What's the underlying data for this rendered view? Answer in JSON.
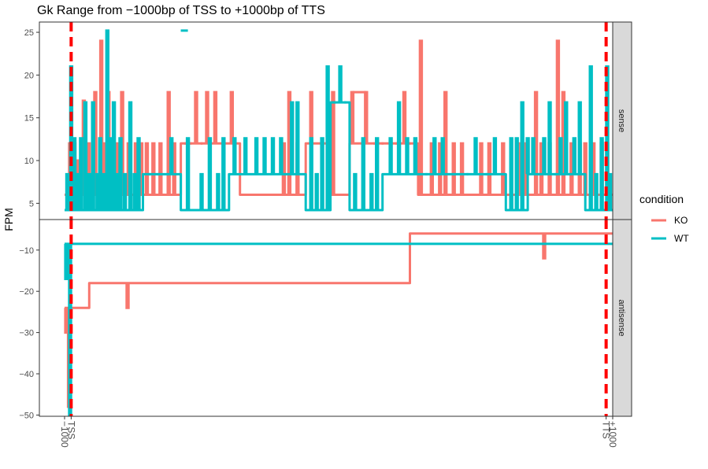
{
  "chart_data": {
    "type": "line",
    "title": "Gk Range from −1000bp of TSS to +1000bp of TTS",
    "ylabel": "FPM",
    "xlabel": "",
    "x_ticks": [
      "−1000",
      "TSS",
      "TTS",
      "+1000"
    ],
    "grid": false,
    "legend": {
      "title": "condition",
      "placement": "right",
      "entries": [
        {
          "label": "KO",
          "color": "#F8766D"
        },
        {
          "label": "WT",
          "color": "#00BFC4"
        }
      ]
    },
    "marker_lines": {
      "color": "#FF0000",
      "style": "dashed",
      "at": [
        "TSS",
        "TTS"
      ]
    },
    "x_domain": [
      0,
      100
    ],
    "x_positions": {
      "−1000": 0,
      "TSS": 1.2,
      "TTS": 98.8,
      "+1000": 100
    },
    "panels": [
      {
        "strip": "sense",
        "y_ticks": [
          5,
          10,
          15,
          20,
          25
        ],
        "ylim": [
          3.1,
          26.2
        ],
        "series": [
          {
            "name": "KO",
            "color": "#F8766D",
            "baseline": [
              [
                0,
                6
              ],
              [
                21.2,
                6
              ],
              [
                21.2,
                12
              ],
              [
                32,
                12
              ],
              [
                32,
                6
              ],
              [
                44,
                6
              ],
              [
                44,
                12
              ],
              [
                48,
                12
              ],
              [
                48,
                6
              ],
              [
                52,
                6
              ],
              [
                52,
                12
              ],
              [
                64.5,
                12
              ],
              [
                64.5,
                6
              ],
              [
                100,
                6
              ]
            ],
            "spikes": [
              [
                1,
                12
              ],
              [
                1.8,
                12
              ],
              [
                2.5,
                10
              ],
              [
                3.5,
                17
              ],
              [
                4.4,
                12
              ],
              [
                5.6,
                18
              ],
              [
                6.7,
                24
              ],
              [
                7.3,
                12
              ],
              [
                8,
                18
              ],
              [
                9.5,
                12
              ],
              [
                10.5,
                18
              ],
              [
                11.7,
                12
              ],
              [
                13,
                12
              ],
              [
                14,
                12
              ],
              [
                15,
                12
              ],
              [
                16.2,
                12
              ],
              [
                17.5,
                12
              ],
              [
                19,
                18
              ],
              [
                20,
                12
              ],
              [
                22,
                12
              ],
              [
                23,
                12
              ],
              [
                24,
                18
              ],
              [
                25,
                12
              ],
              [
                26,
                18
              ],
              [
                27.5,
                18
              ],
              [
                29,
                12
              ],
              [
                30.5,
                18
              ],
              [
                40,
                12
              ],
              [
                41,
                18
              ],
              [
                42.5,
                12
              ],
              [
                45,
                18
              ],
              [
                49,
                18
              ],
              [
                52.5,
                18
              ],
              [
                55,
                18
              ],
              [
                56.5,
                12
              ],
              [
                58,
                12
              ],
              [
                60.5,
                12
              ],
              [
                62,
                18
              ],
              [
                63,
                12
              ],
              [
                65,
                24
              ],
              [
                67,
                12
              ],
              [
                68.5,
                12
              ],
              [
                69.5,
                18
              ],
              [
                71,
                12
              ],
              [
                72.5,
                12
              ],
              [
                76,
                12
              ],
              [
                77.5,
                12
              ],
              [
                80,
                12
              ],
              [
                83,
                12
              ],
              [
                84,
                12
              ],
              [
                86,
                18
              ],
              [
                87,
                12
              ],
              [
                88.5,
                12
              ],
              [
                90,
                24
              ],
              [
                91,
                18
              ],
              [
                92.5,
                12
              ],
              [
                94,
                12
              ],
              [
                95,
                12
              ],
              [
                96.5,
                12
              ],
              [
                98,
                12
              ],
              [
                99,
                12
              ]
            ],
            "lines": [
              [
                [
                  52.5,
                  18
                ],
                [
                  55,
                  18
                ]
              ]
            ]
          },
          {
            "name": "WT",
            "color": "#00BFC4",
            "baseline": [
              [
                0,
                4.2
              ],
              [
                14.3,
                4.2
              ],
              [
                14.3,
                8.4
              ],
              [
                21.2,
                8.4
              ],
              [
                21.2,
                4.2
              ],
              [
                30,
                4.2
              ],
              [
                30,
                8.4
              ],
              [
                44,
                8.4
              ],
              [
                44,
                4.2
              ],
              [
                48.5,
                4.2
              ],
              [
                48.5,
                16.8
              ],
              [
                52,
                16.8
              ],
              [
                52,
                4.2
              ],
              [
                58,
                4.2
              ],
              [
                58,
                8.4
              ],
              [
                80.5,
                8.4
              ],
              [
                80.5,
                4.2
              ],
              [
                84.5,
                4.2
              ],
              [
                84.5,
                8.4
              ],
              [
                95,
                8.4
              ],
              [
                95,
                4.2
              ],
              [
                100,
                4.2
              ]
            ],
            "spikes": [
              [
                0.5,
                8.4
              ],
              [
                1.2,
                21
              ],
              [
                1.8,
                12.6
              ],
              [
                2.5,
                8.4
              ],
              [
                3,
                12.6
              ],
              [
                3.8,
                16.8
              ],
              [
                4.5,
                8.4
              ],
              [
                5.2,
                16.8
              ],
              [
                6,
                8.4
              ],
              [
                6.5,
                12.6
              ],
              [
                7.2,
                8.4
              ],
              [
                7.8,
                25.2
              ],
              [
                8.3,
                12.6
              ],
              [
                9,
                16.8
              ],
              [
                9.5,
                8.4
              ],
              [
                10.2,
                12.6
              ],
              [
                11,
                8.4
              ],
              [
                12,
                16.8
              ],
              [
                12.8,
                8.4
              ],
              [
                13.5,
                12.6
              ],
              [
                15.5,
                8.4
              ],
              [
                17,
                8.4
              ],
              [
                18.8,
                8.4
              ],
              [
                19.5,
                12.6
              ],
              [
                22.5,
                12.6
              ],
              [
                25,
                8.4
              ],
              [
                26.5,
                12.6
              ],
              [
                28,
                8.4
              ],
              [
                29,
                12.6
              ],
              [
                31,
                12.6
              ],
              [
                33,
                12.6
              ],
              [
                35,
                12.6
              ],
              [
                36.5,
                12.6
              ],
              [
                38,
                12.6
              ],
              [
                39.5,
                12.6
              ],
              [
                41.5,
                16.8
              ],
              [
                42.5,
                16.8
              ],
              [
                45,
                12.6
              ],
              [
                46,
                8.4
              ],
              [
                47,
                12.6
              ],
              [
                48,
                21
              ],
              [
                49.3,
                16.8
              ],
              [
                50.3,
                21
              ],
              [
                51.2,
                16.8
              ],
              [
                53,
                8.4
              ],
              [
                54.5,
                12.6
              ],
              [
                56,
                8.4
              ],
              [
                57,
                12.6
              ],
              [
                59.5,
                12.6
              ],
              [
                61,
                16.8
              ],
              [
                62.5,
                12.6
              ],
              [
                64,
                12.6
              ],
              [
                66,
                8.4
              ],
              [
                67.5,
                12.6
              ],
              [
                69,
                12.6
              ],
              [
                71,
                8.4
              ],
              [
                73.5,
                8.4
              ],
              [
                75,
                12.6
              ],
              [
                77,
                8.4
              ],
              [
                78.5,
                12.6
              ],
              [
                80,
                8.4
              ],
              [
                81.5,
                12.6
              ],
              [
                82.5,
                12.6
              ],
              [
                83.5,
                16.8
              ],
              [
                84.5,
                12.6
              ],
              [
                85.5,
                12.6
              ],
              [
                86.5,
                8.4
              ],
              [
                87.5,
                12.6
              ],
              [
                88.5,
                16.8
              ],
              [
                89.5,
                8.4
              ],
              [
                90.5,
                12.6
              ],
              [
                91.5,
                16.8
              ],
              [
                92.2,
                8.4
              ],
              [
                93,
                12.6
              ],
              [
                94,
                16.8
              ],
              [
                94.8,
                8.4
              ],
              [
                96,
                21
              ],
              [
                97,
                8.4
              ],
              [
                98,
                12.6
              ],
              [
                99,
                21
              ],
              [
                99.5,
                8.4
              ]
            ],
            "lines": [
              [
                [
                  21.2,
                  25.2
                ],
                [
                  22.5,
                  25.2
                ]
              ]
            ]
          }
        ]
      },
      {
        "strip": "antisense",
        "y_ticks": [
          -10,
          -20,
          -30,
          -40,
          -50
        ],
        "ylim": [
          -50.3,
          -2.6
        ],
        "series": [
          {
            "name": "KO",
            "color": "#F8766D",
            "baseline": [
              [
                0,
                -24
              ],
              [
                4.5,
                -24
              ],
              [
                4.5,
                -18
              ],
              [
                63,
                -18
              ],
              [
                63,
                -6
              ],
              [
                100,
                -6
              ]
            ],
            "spikes": [
              [
                0.3,
                -30
              ],
              [
                0.8,
                -48
              ],
              [
                11.5,
                -24
              ],
              [
                87.5,
                -12
              ]
            ],
            "lines": []
          },
          {
            "name": "WT",
            "color": "#00BFC4",
            "baseline": [
              [
                0,
                -8.5
              ],
              [
                100,
                -8.5
              ]
            ],
            "spikes": [
              [
                0.3,
                -17
              ],
              [
                0.7,
                -12.5
              ],
              [
                1.0,
                -50
              ]
            ],
            "lines": []
          }
        ]
      }
    ]
  }
}
